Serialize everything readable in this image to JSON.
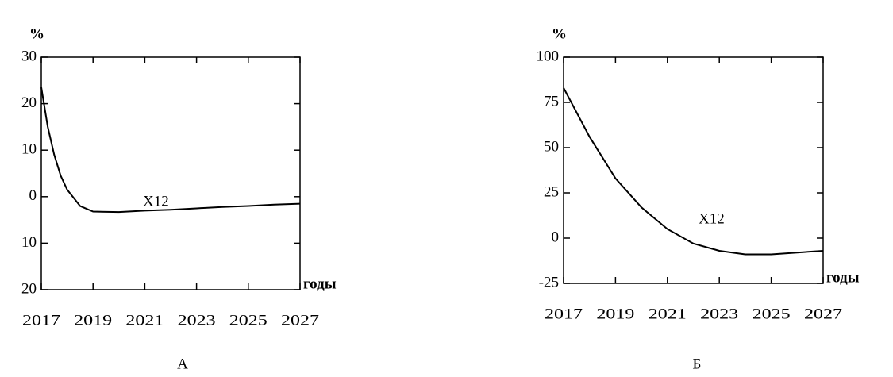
{
  "chart_data": [
    {
      "type": "line",
      "y_label": "%",
      "x_label": "годы",
      "annotation": "X12",
      "caption": "А",
      "x": [
        2017,
        2017.25,
        2017.5,
        2017.75,
        2018,
        2018.5,
        2019,
        2020,
        2021,
        2022,
        2023,
        2024,
        2025,
        2026,
        2027
      ],
      "series": [
        {
          "color": "#000000",
          "values": [
            23.5,
            15,
            9,
            4.5,
            1.5,
            -2,
            -3.2,
            -3.3,
            -3,
            -2.8,
            -2.5,
            -2.2,
            -2,
            -1.7,
            -1.5
          ]
        }
      ],
      "xlim": [
        2017,
        2027
      ],
      "xticks": [
        2017,
        2019,
        2021,
        2023,
        2025,
        2027
      ],
      "ylim": [
        -20,
        30
      ],
      "yticks": [
        {
          "value": -20,
          "label": "20"
        },
        {
          "value": -10,
          "label": "10"
        },
        0,
        10,
        20,
        30
      ]
    },
    {
      "type": "line",
      "y_label": "%",
      "x_label": "годы",
      "annotation": "X12",
      "caption": "Б",
      "x": [
        2017,
        2018,
        2019,
        2020,
        2021,
        2022,
        2023,
        2024,
        2025,
        2026,
        2027
      ],
      "series": [
        {
          "color": "#000000",
          "values": [
            83,
            56,
            33,
            17,
            5,
            -3,
            -7,
            -9,
            -9,
            -8,
            -7
          ]
        }
      ],
      "xlim": [
        2017,
        2027
      ],
      "xticks": [
        2017,
        2019,
        2021,
        2023,
        2025,
        2027
      ],
      "ylim": [
        -25,
        100
      ],
      "yticks": [
        -25,
        0,
        25,
        50,
        75,
        100
      ]
    }
  ]
}
